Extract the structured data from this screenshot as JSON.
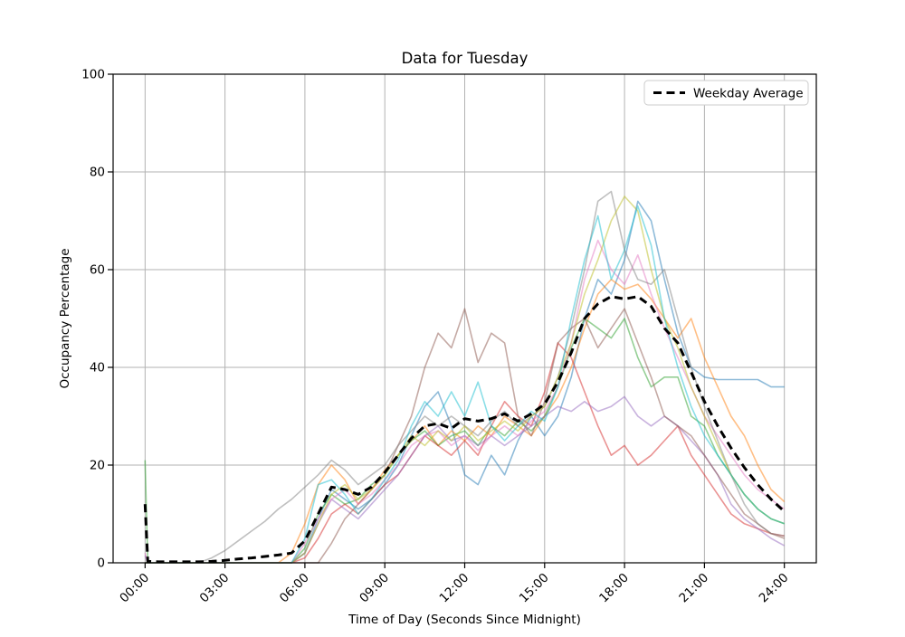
{
  "chart_data": {
    "type": "line",
    "title": "Data for Tuesday",
    "xlabel": "Time of Day (Seconds Since Midnight)",
    "ylabel": "Occupancy Percentage",
    "xlim": [
      -1.2,
      25.2
    ],
    "ylim": [
      0,
      100
    ],
    "grid": true,
    "legend": {
      "position": "upper right",
      "label": "Weekday Average"
    },
    "xticks": {
      "hours": [
        0,
        3,
        6,
        9,
        12,
        15,
        18,
        21,
        24
      ],
      "labels": [
        "00:00",
        "03:00",
        "06:00",
        "09:00",
        "12:00",
        "15:00",
        "18:00",
        "21:00",
        "24:00"
      ]
    },
    "yticks": [
      0,
      20,
      40,
      60,
      80,
      100
    ],
    "x_hours": [
      0,
      0.1,
      0.5,
      1,
      1.5,
      2,
      2.5,
      3,
      3.5,
      4,
      4.5,
      5,
      5.5,
      6,
      6.5,
      7,
      7.5,
      8,
      8.5,
      9,
      9.5,
      10,
      10.5,
      11,
      11.5,
      12,
      12.5,
      13,
      13.5,
      14,
      14.5,
      15,
      15.5,
      16,
      16.5,
      17,
      17.5,
      18,
      18.5,
      19,
      19.5,
      20,
      20.5,
      21,
      21.5,
      22,
      22.5,
      23,
      23.5,
      24
    ],
    "series": [
      {
        "name": "blue",
        "color": "#1f77b4",
        "alpha": 0.5,
        "width": 1.6,
        "values": [
          0,
          0,
          0,
          0,
          0,
          0,
          0,
          0,
          0,
          0,
          0,
          0,
          0,
          2,
          9,
          15,
          13,
          11,
          13,
          16,
          20,
          26,
          32,
          35,
          28,
          18,
          16,
          22,
          18,
          25,
          30,
          26,
          30,
          38,
          50,
          58,
          55,
          62,
          74,
          70,
          58,
          47,
          40,
          38,
          37.5,
          37.5,
          37.5,
          37.5,
          36,
          36
        ]
      },
      {
        "name": "orange",
        "color": "#ff7f0e",
        "alpha": 0.5,
        "width": 1.6,
        "values": [
          0,
          0,
          0,
          0,
          0,
          0,
          0,
          0,
          0,
          0,
          0,
          0,
          2,
          8,
          16,
          20,
          17,
          12,
          15,
          19,
          22,
          25,
          28,
          24,
          27,
          25,
          28,
          26,
          30,
          28,
          26,
          30,
          34,
          40,
          48,
          55,
          58,
          56,
          57,
          54,
          50,
          46,
          50,
          42,
          36,
          30,
          26,
          20,
          15,
          12.5
        ]
      },
      {
        "name": "green",
        "color": "#2ca02c",
        "alpha": 0.5,
        "width": 1.6,
        "values": [
          21,
          0,
          0,
          0,
          0,
          0,
          0,
          0,
          0,
          0,
          0,
          0,
          0,
          3,
          10,
          14,
          12,
          13,
          16,
          18,
          22,
          25,
          27,
          24,
          26,
          27,
          24,
          28,
          26,
          29,
          27,
          30,
          36,
          44,
          50,
          48,
          46,
          50,
          42,
          36,
          38,
          38,
          30,
          28,
          22,
          18,
          14,
          11,
          9,
          8
        ]
      },
      {
        "name": "red",
        "color": "#d62728",
        "alpha": 0.5,
        "width": 1.6,
        "values": [
          0,
          0,
          0,
          0,
          0,
          0,
          0,
          0,
          0,
          0,
          0,
          0,
          0,
          1,
          5,
          10,
          12,
          10,
          13,
          16,
          18,
          22,
          26,
          24,
          22,
          25,
          22,
          28,
          33,
          30,
          28,
          35,
          45,
          42,
          35,
          28,
          22,
          24,
          20,
          22,
          25,
          28,
          22,
          18,
          14,
          10,
          8,
          7,
          6,
          5.5
        ]
      },
      {
        "name": "purple",
        "color": "#9467bd",
        "alpha": 0.5,
        "width": 1.6,
        "values": [
          1.5,
          0,
          0,
          0,
          0,
          0,
          0,
          0,
          0,
          0,
          0,
          0,
          0,
          2,
          8,
          13,
          11,
          9,
          12,
          15,
          18,
          22,
          26,
          28,
          25,
          26,
          24,
          26,
          24,
          26,
          28,
          30,
          32,
          31,
          33,
          31,
          32,
          34,
          30,
          28,
          30,
          28,
          25,
          22,
          18,
          12,
          9,
          7,
          5,
          3.5
        ]
      },
      {
        "name": "brown",
        "color": "#8c564b",
        "alpha": 0.5,
        "width": 1.6,
        "values": [
          0,
          0,
          0,
          0,
          0,
          0,
          0,
          0,
          0,
          0,
          0,
          0,
          0,
          0,
          0,
          4,
          9,
          12,
          15,
          18,
          24,
          30,
          40,
          47,
          44,
          52,
          41,
          47,
          45,
          30,
          26,
          33,
          45,
          48,
          50,
          44,
          48,
          52,
          45,
          38,
          30,
          28,
          26,
          22,
          18,
          14,
          10,
          8,
          6,
          5
        ]
      },
      {
        "name": "pink",
        "color": "#e377c2",
        "alpha": 0.5,
        "width": 1.6,
        "values": [
          2,
          0,
          0,
          0,
          0,
          0,
          0,
          0,
          0,
          0,
          0,
          0,
          0,
          4,
          9,
          13,
          15,
          12,
          14,
          17,
          20,
          24,
          26,
          27,
          24,
          26,
          23,
          26,
          28,
          26,
          29,
          31,
          36,
          45,
          58,
          66,
          60,
          57,
          63,
          55,
          48,
          42,
          36,
          30,
          26,
          22,
          18,
          15,
          13,
          11
        ]
      },
      {
        "name": "gray",
        "color": "#7f7f7f",
        "alpha": 0.5,
        "width": 1.6,
        "values": [
          0,
          0,
          0,
          0,
          0,
          0,
          1,
          2.5,
          4.5,
          6.5,
          8.5,
          11,
          13,
          15.5,
          18,
          21,
          19,
          16,
          18,
          20,
          24,
          27,
          30,
          28,
          30,
          28,
          26,
          29,
          31,
          28,
          30,
          32,
          38,
          48,
          60,
          74,
          76,
          64,
          58,
          57,
          60,
          50,
          40,
          32,
          25,
          18,
          12,
          8,
          6,
          5.5
        ]
      },
      {
        "name": "olive",
        "color": "#bcbd22",
        "alpha": 0.5,
        "width": 1.6,
        "values": [
          0,
          0,
          0,
          0,
          0,
          0,
          0,
          0,
          0,
          0,
          0,
          0,
          0,
          2,
          8,
          14,
          16,
          13,
          15,
          18,
          22,
          26,
          24,
          27,
          25,
          28,
          25,
          27,
          29,
          27,
          30,
          32,
          38,
          45,
          55,
          62,
          70,
          75,
          72,
          60,
          50,
          44,
          36,
          30,
          24,
          18,
          14,
          11,
          9,
          8
        ]
      },
      {
        "name": "cyan",
        "color": "#17becf",
        "alpha": 0.5,
        "width": 1.6,
        "values": [
          0,
          0,
          0,
          0,
          0,
          0,
          0,
          0,
          0,
          0,
          0,
          0,
          0,
          5,
          16,
          17,
          14,
          10,
          13,
          17,
          21,
          28,
          33,
          30,
          35,
          30,
          37,
          28,
          25,
          28,
          31,
          29,
          36,
          50,
          62,
          71,
          58,
          64,
          73,
          65,
          50,
          40,
          32,
          26,
          22,
          18,
          14,
          11,
          9,
          8
        ]
      }
    ],
    "average": {
      "name": "Weekday Average",
      "color": "#000000",
      "dash": [
        9,
        5.5
      ],
      "width": 3,
      "values": [
        12,
        0.3,
        0.2,
        0.2,
        0.2,
        0.2,
        0.3,
        0.5,
        0.8,
        1,
        1.3,
        1.6,
        2,
        4.5,
        10,
        15.5,
        15,
        14,
        15.5,
        18.5,
        22,
        25.5,
        28,
        28.5,
        27.5,
        29.5,
        29,
        29.5,
        30.5,
        29,
        30.5,
        32.5,
        37,
        43,
        50,
        53,
        54.5,
        54,
        54.5,
        52.5,
        48,
        45,
        39,
        33,
        28,
        23.5,
        19.5,
        16,
        13,
        10.5
      ]
    }
  },
  "colors": {
    "background": "#ffffff",
    "grid": "#b2b2b2",
    "spine": "#000000",
    "tick": "#000000",
    "legend_border": "#cccccc",
    "legend_fill": "#ffffff"
  }
}
